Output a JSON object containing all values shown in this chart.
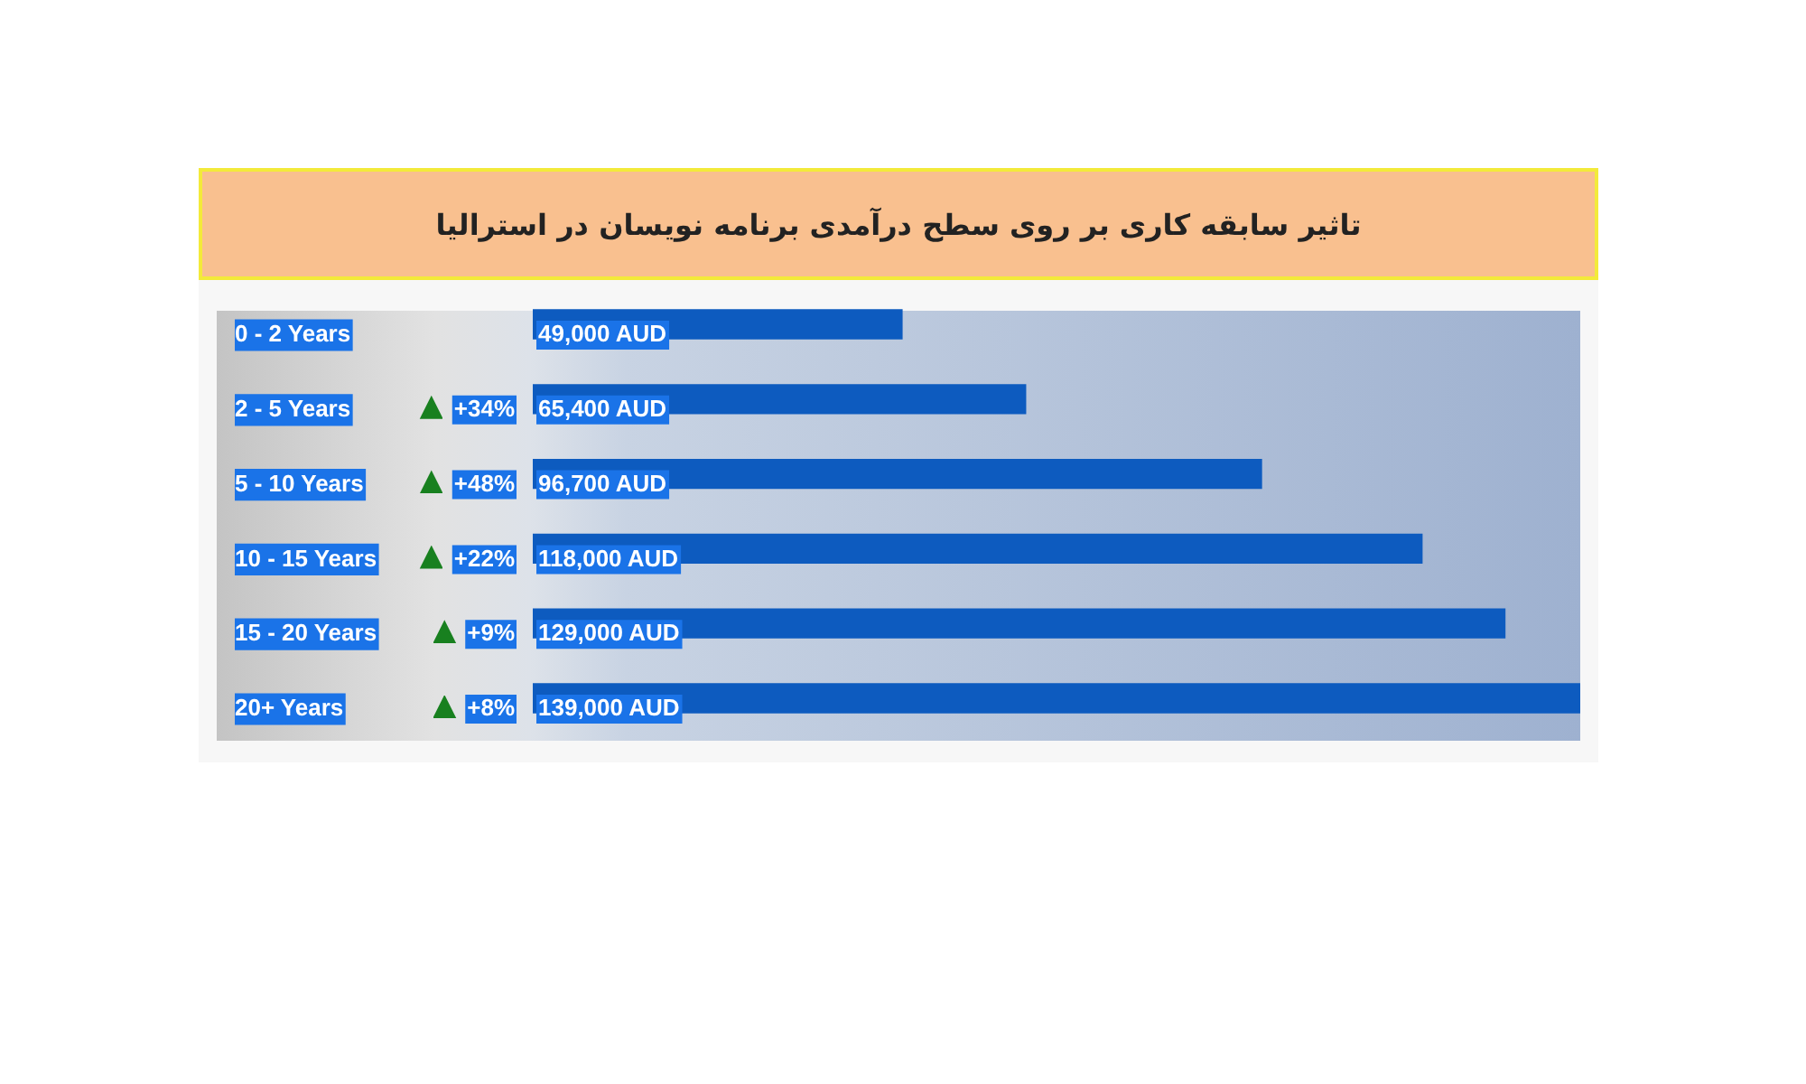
{
  "chart_data": {
    "type": "bar",
    "orientation": "horizontal",
    "title": "تاثیر سابقه کاری بر روی سطح درآمدی برنامه نویسان در استرالیا",
    "categories": [
      "0 - 2 Years",
      "2 - 5 Years",
      "5 - 10 Years",
      "10 - 15 Years",
      "15 - 20 Years",
      "20+ Years"
    ],
    "values": [
      49000,
      65400,
      96700,
      118000,
      129000,
      139000
    ],
    "value_labels": [
      "49,000 AUD",
      "65,400 AUD",
      "96,700 AUD",
      "118,000 AUD",
      "129,000 AUD",
      "139,000 AUD"
    ],
    "color": "#0d5bbf",
    "xlim": [
      0,
      139000
    ],
    "tick_labels": "y",
    "grid": false,
    "legend": false,
    "annotations": [
      "+34%",
      "+48%",
      "+22%",
      "+9%",
      "+8%"
    ]
  }
}
